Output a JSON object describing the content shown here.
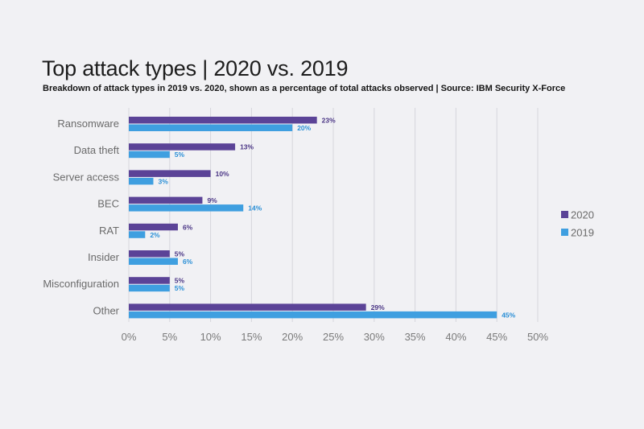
{
  "chart_data": {
    "type": "bar",
    "orientation": "horizontal",
    "title": "Top attack types | 2020 vs. 2019",
    "subtitle": "Breakdown of attack types in 2019 vs. 2020, shown as a percentage of total attacks observed | Source: IBM Security X-Force",
    "categories": [
      "Ransomware",
      "Data theft",
      "Server access",
      "BEC",
      "RAT",
      "Insider",
      "Misconfiguration",
      "Other"
    ],
    "series": [
      {
        "name": "2020",
        "values": [
          23,
          13,
          10,
          9,
          6,
          5,
          5,
          29
        ],
        "color": "#5b4397"
      },
      {
        "name": "2019",
        "values": [
          20,
          5,
          3,
          14,
          2,
          6,
          5,
          45
        ],
        "color": "#3f9fe0"
      }
    ],
    "value_label_colors": [
      "#4a3585",
      "#2a8fd6"
    ],
    "value_suffix": "%",
    "xlim": [
      0,
      50
    ],
    "xticks": [
      "0%",
      "5%",
      "10%",
      "15%",
      "20%",
      "25%",
      "30%",
      "35%",
      "40%",
      "45%",
      "50%"
    ],
    "xtick_values": [
      0,
      5,
      10,
      15,
      20,
      25,
      30,
      35,
      40,
      45,
      50
    ],
    "grid": "vertical",
    "legend_position": "right"
  }
}
